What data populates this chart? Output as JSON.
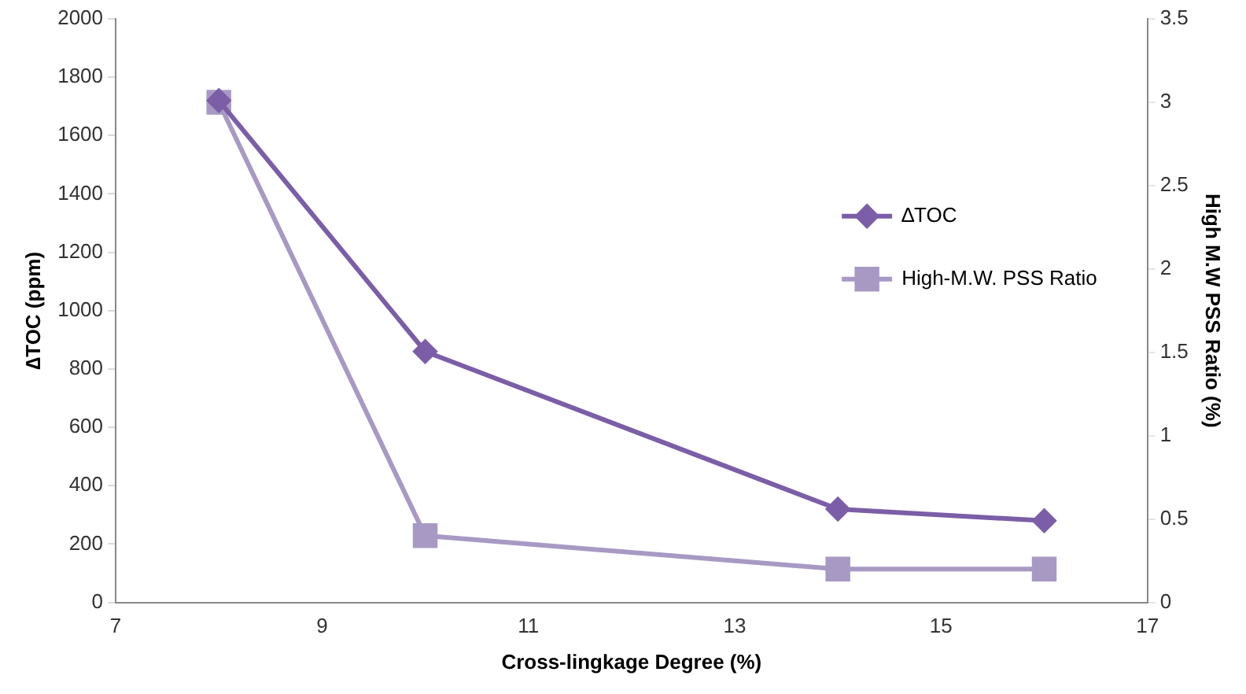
{
  "chart_data": {
    "type": "line",
    "xlabel": "Cross-lingkage Degree (%)",
    "ylabel": "∆TOC (ppm)",
    "y2label": "High M.W PSS Ratio (%)",
    "x": [
      8,
      10,
      14,
      16
    ],
    "series": [
      {
        "name": "∆TOC",
        "color": "#7b5ea7",
        "values": [
          1720,
          860,
          320,
          280
        ],
        "marker": "diamond"
      },
      {
        "name": "High-M.W. PSS Ratio",
        "color": "#a899c4",
        "values": [
          3,
          0.4,
          0.2,
          0.2
        ],
        "marker": "square",
        "axis": "y2"
      }
    ],
    "xlim": [
      7,
      17
    ],
    "xticks": [
      7,
      9,
      11,
      13,
      15,
      17
    ],
    "ylim": [
      0,
      2000
    ],
    "yticks": [
      0,
      200,
      400,
      600,
      800,
      1000,
      1200,
      1400,
      1600,
      1800,
      2000
    ],
    "y2lim": [
      0,
      3.5
    ],
    "y2ticks": [
      0,
      0.5,
      1,
      1.5,
      2,
      2.5,
      3,
      3.5
    ],
    "legend": "right",
    "grid": false,
    "line_style": "solid"
  }
}
